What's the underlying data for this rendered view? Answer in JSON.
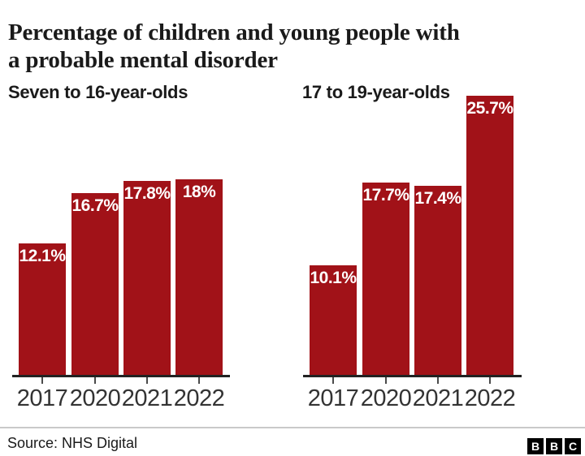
{
  "title": {
    "line1": "Percentage of children and young people with",
    "line2": "a probable mental disorder"
  },
  "chart_data": [
    {
      "type": "bar",
      "title": "Seven to 16-year-olds",
      "categories": [
        "2017",
        "2020",
        "2021",
        "2022"
      ],
      "values": [
        12.1,
        16.7,
        17.8,
        18
      ],
      "value_labels": [
        "12.1%",
        "16.7%",
        "17.8%",
        "18%"
      ],
      "xlabel": "",
      "ylabel": "",
      "ylim": [
        0,
        26
      ],
      "unit": "%",
      "grid": false,
      "legend": "none",
      "bar_color": "#a11218"
    },
    {
      "type": "bar",
      "title": "17 to 19-year-olds",
      "categories": [
        "2017",
        "2020",
        "2021",
        "2022"
      ],
      "values": [
        10.1,
        17.7,
        17.4,
        25.7
      ],
      "value_labels": [
        "10.1%",
        "17.7%",
        "17.4%",
        "25.7%"
      ],
      "xlabel": "",
      "ylabel": "",
      "ylim": [
        0,
        26
      ],
      "unit": "%",
      "grid": false,
      "legend": "none",
      "bar_color": "#a11218"
    }
  ],
  "footer": {
    "source": "Source: NHS Digital",
    "logo_letters": [
      "B",
      "B",
      "C"
    ]
  },
  "colors": {
    "bar": "#a11218",
    "axis": "#222222",
    "title_text": "#1a1a1a",
    "bar_label_text": "#ffffff",
    "tick_label_text": "#333333",
    "divider": "#c9c9c9",
    "logo_bg": "#000000",
    "logo_text": "#ffffff"
  }
}
